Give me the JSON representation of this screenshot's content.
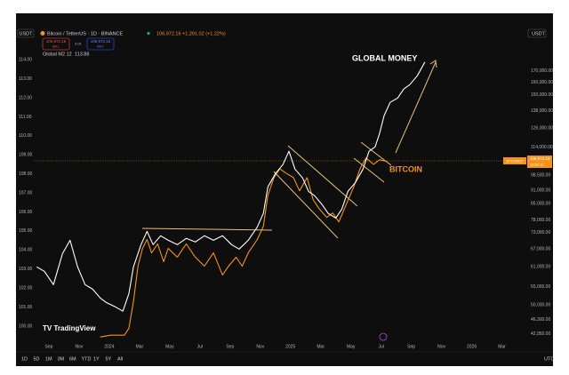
{
  "ui": {
    "symbol_box": "USDT",
    "currency_box": "USDT",
    "last_change": "106,972.16 +1,291.02 (+1.22%)",
    "sell_price": "106,972.16",
    "sell": "SELL",
    "spread": "0.01",
    "buy_price": "106,972.16",
    "buy": "BUY",
    "legend": "Global M2 12",
    "legend_value": "113.88",
    "ticker_tag": "BTCUSDT",
    "price_tag": "106,972.16",
    "countdown": "16:59:12",
    "logo": "TradingView",
    "ranges": [
      "1D",
      "5D",
      "1M",
      "3M",
      "6M",
      "YTD",
      "1Y",
      "5Y",
      "All"
    ],
    "timezone": "UTC"
  },
  "chart_data": {
    "type": "line",
    "title": "Bitcoin / TetherUS · 1D · BINANCE",
    "xlim": [
      0,
      32.5
    ],
    "xticks": [
      {
        "value": 1,
        "label": "Sep"
      },
      {
        "value": 3,
        "label": "Nov"
      },
      {
        "value": 5,
        "label": "2024"
      },
      {
        "value": 7,
        "label": "Mar"
      },
      {
        "value": 9,
        "label": "May"
      },
      {
        "value": 11,
        "label": "Jul"
      },
      {
        "value": 13,
        "label": "Sep"
      },
      {
        "value": 15,
        "label": "Nov"
      },
      {
        "value": 17,
        "label": "2025"
      },
      {
        "value": 19,
        "label": "Mar"
      },
      {
        "value": 21,
        "label": "May"
      },
      {
        "value": 23,
        "label": "Jul"
      },
      {
        "value": 25,
        "label": "Sep"
      },
      {
        "value": 27,
        "label": "Nov"
      },
      {
        "value": 29,
        "label": "2026"
      },
      {
        "value": 31,
        "label": "Mar"
      }
    ],
    "ylim": [
      99.25,
      114.9
    ],
    "yticks": [
      {
        "value": 100,
        "label": "100.00"
      },
      {
        "value": 101,
        "label": "101.00"
      },
      {
        "value": 102,
        "label": "102.00"
      },
      {
        "value": 103,
        "label": "103.00"
      },
      {
        "value": 104,
        "label": "104.00"
      },
      {
        "value": 105,
        "label": "105.00"
      },
      {
        "value": 106,
        "label": "106.00"
      },
      {
        "value": 107,
        "label": "107.00"
      },
      {
        "value": 108,
        "label": "108.00"
      },
      {
        "value": 109,
        "label": "109.00"
      },
      {
        "value": 110,
        "label": "110.00"
      },
      {
        "value": 111,
        "label": "111.00"
      },
      {
        "value": 112,
        "label": "112.00"
      },
      {
        "value": 113,
        "label": "113.00"
      },
      {
        "value": 114,
        "label": "114.00"
      }
    ],
    "y2lim": [
      41560,
      197000
    ],
    "y2log": true,
    "y2ticks": [
      {
        "value": 170000,
        "label": "170,000.00"
      },
      {
        "value": 160000,
        "label": "160,000.00"
      },
      {
        "value": 150000,
        "label": "150,000.00"
      },
      {
        "value": 138000,
        "label": "138,000.00"
      },
      {
        "value": 126000,
        "label": "126,000.00"
      },
      {
        "value": 114000,
        "label": "114,000.00"
      },
      {
        "value": 98500,
        "label": "98,500.00"
      },
      {
        "value": 91000,
        "label": "91,000.00"
      },
      {
        "value": 85000,
        "label": "85,000.00"
      },
      {
        "value": 78000,
        "label": "78,000.00"
      },
      {
        "value": 73000,
        "label": "73,000.00"
      },
      {
        "value": 67000,
        "label": "67,000.00"
      },
      {
        "value": 61000,
        "label": "61,000.00"
      },
      {
        "value": 55000,
        "label": "55,000.00"
      },
      {
        "value": 50000,
        "label": "50,000.00"
      },
      {
        "value": 46300,
        "label": "46,300.00"
      },
      {
        "value": 42950,
        "label": "42,950.00"
      }
    ],
    "grid": false,
    "series": [
      {
        "name": "GLOBAL MONEY",
        "color": "#ffffff",
        "axis": "y",
        "x": [
          0.2,
          0.7,
          1.3,
          1.9,
          2.4,
          2.9,
          3.4,
          3.9,
          4.4,
          4.8,
          5.4,
          5.9,
          6.3,
          6.6,
          7.1,
          7.5,
          7.9,
          8.4,
          8.9,
          9.5,
          10.1,
          10.7,
          11.3,
          11.9,
          12.5,
          13.1,
          13.6,
          14.2,
          14.8,
          15.2,
          15.5,
          16.0,
          16.5,
          16.9,
          17.3,
          17.8,
          18.2,
          18.6,
          19.1,
          19.5,
          20.0,
          20.4,
          20.8,
          21.3,
          21.8,
          22.2,
          22.6,
          22.9,
          23.2,
          23.6,
          24.1,
          24.5,
          24.9,
          25.4,
          25.9
        ],
        "values": [
          103.11,
          102.88,
          102.18,
          103.81,
          104.51,
          103.11,
          102.18,
          101.94,
          101.48,
          101.24,
          101.01,
          100.78,
          101.71,
          103.11,
          104.28,
          104.98,
          104.28,
          104.75,
          104.51,
          104.28,
          104.61,
          104.42,
          104.75,
          104.51,
          104.75,
          104.28,
          104.05,
          104.51,
          105.21,
          105.92,
          107.32,
          108.02,
          108.49,
          109.19,
          108.25,
          107.79,
          107.08,
          106.85,
          106.38,
          105.92,
          105.68,
          106.15,
          107.08,
          107.55,
          108.25,
          109.19,
          109.42,
          110.12,
          111.06,
          111.76,
          111.99,
          112.46,
          112.69,
          113.16,
          113.88
        ]
      },
      {
        "name": "BITCOIN",
        "color": "#f7931a",
        "axis": "y2",
        "x": [
          4.4,
          5.1,
          6.0,
          6.3,
          6.6,
          6.9,
          7.2,
          7.5,
          7.8,
          8.2,
          8.6,
          8.9,
          9.5,
          10.1,
          10.7,
          11.3,
          11.9,
          12.5,
          12.9,
          13.4,
          13.8,
          14.2,
          14.8,
          15.2,
          15.5,
          15.9,
          16.3,
          16.7,
          17.2,
          17.6,
          18.1,
          18.5,
          18.9,
          19.4,
          19.8,
          20.2,
          20.7,
          21.2,
          21.6,
          22.0,
          22.5,
          22.9,
          23.4
        ],
        "values": [
          42300,
          42700,
          42700,
          44300,
          50900,
          61250,
          67200,
          70400,
          65650,
          68800,
          62700,
          67200,
          64200,
          68800,
          64200,
          61250,
          65650,
          58500,
          61250,
          64200,
          61250,
          65650,
          70400,
          75400,
          88700,
          97300,
          101900,
          99600,
          97300,
          90800,
          97300,
          86700,
          82700,
          79000,
          80850,
          77200,
          84700,
          92900,
          101900,
          107800,
          104300,
          106800,
          105900
        ]
      }
    ]
  }
}
